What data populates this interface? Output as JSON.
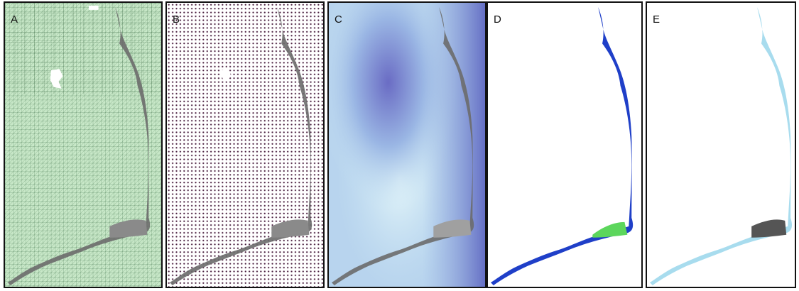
{
  "panels": [
    {
      "label": "A",
      "style": "triangular-mesh",
      "background": "#c8e8c8",
      "mesh_color": "#3c6f46"
    },
    {
      "label": "B",
      "style": "node-points",
      "background": "#ffffff",
      "point_color": "#4a1f3f"
    },
    {
      "label": "C",
      "style": "bathymetry",
      "shallow_color": "#d8f0f6",
      "deep_color": "#6a6cc4"
    },
    {
      "label": "D",
      "style": "classified",
      "class_colors": [
        "#1f3fc8",
        "#5cd65c"
      ]
    },
    {
      "label": "E",
      "style": "land-cover",
      "land_color": "#a8dcee",
      "dune_color": "#555555"
    }
  ],
  "colors": {
    "border": "#111111",
    "barrier_island": "#6b6b6b"
  }
}
